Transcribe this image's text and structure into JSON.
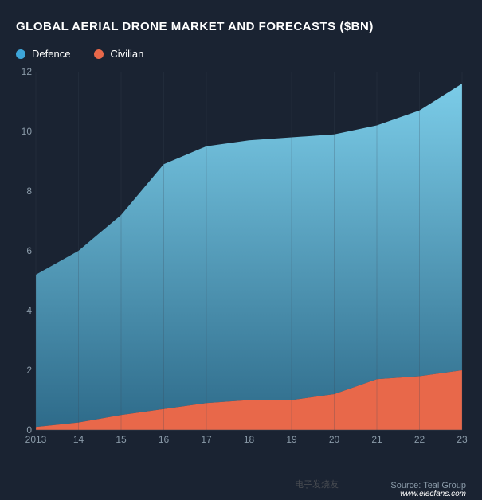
{
  "chart": {
    "type": "area",
    "title": "GLOBAL AERIAL DRONE MARKET AND FORECASTS ($BN)",
    "title_fontsize": 15,
    "title_color": "#ffffff",
    "background_color": "#1a2332",
    "legend": {
      "items": [
        {
          "label": "Defence",
          "color": "#3da5d9"
        },
        {
          "label": "Civilian",
          "color": "#e8684a"
        }
      ]
    },
    "x_axis": {
      "ticks": [
        "2013",
        "14",
        "15",
        "16",
        "17",
        "18",
        "19",
        "20",
        "21",
        "22",
        "23"
      ],
      "fontsize": 12,
      "color": "#8a9aa8"
    },
    "y_axis": {
      "ticks": [
        0,
        2,
        4,
        6,
        8,
        10,
        12
      ],
      "ylim": [
        0,
        12
      ],
      "fontsize": 12,
      "color": "#8a9aa8"
    },
    "series": {
      "civilian": {
        "color": "#e8684a",
        "values": [
          0.1,
          0.25,
          0.5,
          0.7,
          0.9,
          1.0,
          1.0,
          1.2,
          1.7,
          1.8,
          2.0
        ]
      },
      "defence": {
        "color_top": "#7bcce8",
        "color_bottom": "#2e6b8a",
        "values": [
          5.2,
          6.0,
          7.2,
          8.9,
          9.5,
          9.7,
          9.8,
          9.9,
          10.2,
          10.7,
          11.6
        ]
      }
    },
    "grid_color": "#3a4856",
    "axis_label_color": "#8a9aa8",
    "source_text": "Source: Teal Group",
    "watermark_text": "电子发烧友",
    "watermark_url": "www.elecfans.com"
  }
}
